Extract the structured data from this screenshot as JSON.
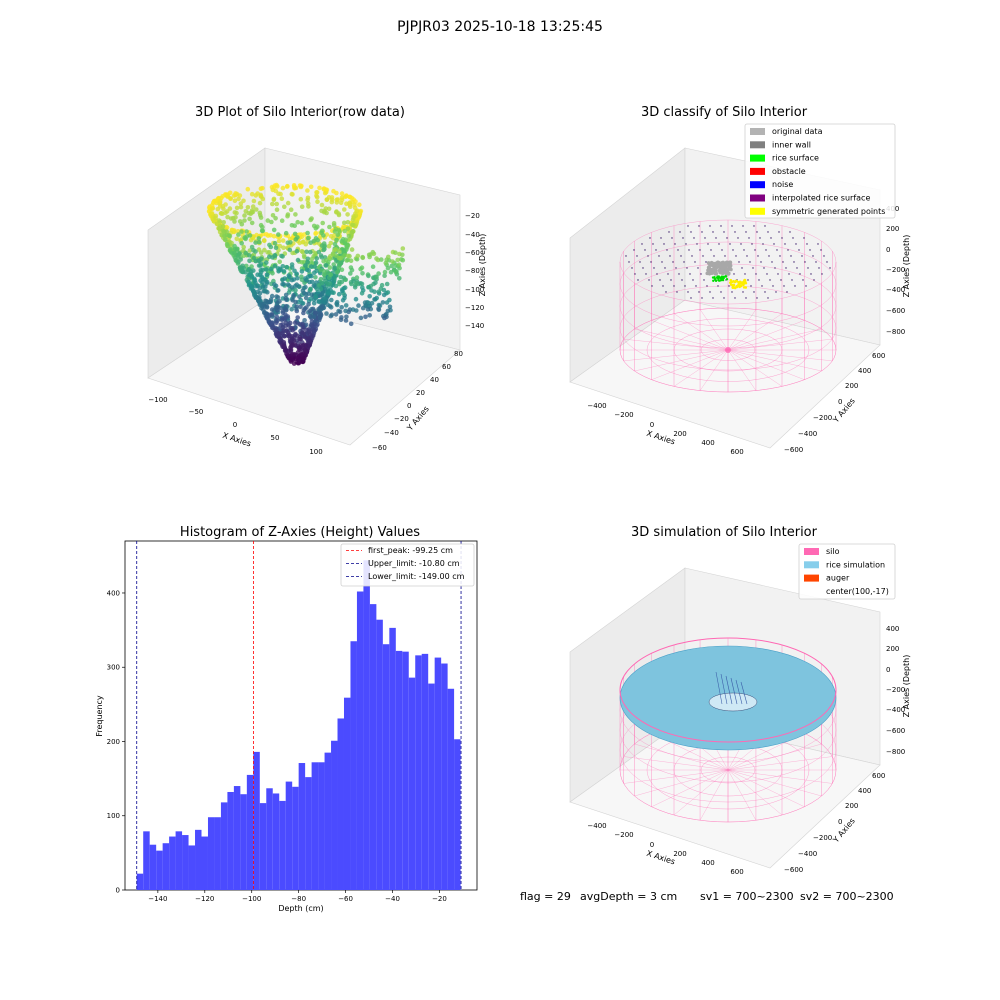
{
  "figure": {
    "suptitle": "PJPJR03 2025-10-18 13:25:45",
    "stats": {
      "flag": "flag = 29",
      "avg": "avgDepth = 3 cm",
      "sv1": "sv1 = 700~2300",
      "sv2": "sv2 = 700~2300"
    }
  },
  "chart_data": [
    {
      "type": "scatter",
      "title": "3D Plot of Silo Interior(row data)",
      "xlabel": "X Axies",
      "ylabel": "Y Axies",
      "zlabel": "Z Axies (Depth)",
      "xticks": [
        "−100",
        "−50",
        "0",
        "50",
        "100"
      ],
      "yticks": [
        "−60",
        "−40",
        "−20",
        "0",
        "20",
        "40",
        "60",
        "80"
      ],
      "zticks": [
        "−20",
        "−40",
        "−60",
        "−80",
        "−100",
        "−120",
        "−140"
      ],
      "zlim": [
        -150,
        -15
      ],
      "colormap": "viridis"
    },
    {
      "type": "scatter",
      "title": "3D classify of Silo Interior",
      "xlabel": "X Axies",
      "ylabel": "Y Axies",
      "zlabel": "Z Axies (Depth)",
      "xticks": [
        "−400",
        "−200",
        "0",
        "200",
        "400",
        "600"
      ],
      "yticks": [
        "−600",
        "−400",
        "−200",
        "0",
        "200",
        "400",
        "600"
      ],
      "zticks": [
        "400",
        "200",
        "0",
        "−200",
        "−400",
        "−600",
        "−800"
      ],
      "legend": [
        {
          "label": "original data",
          "color": "#b3b3b3"
        },
        {
          "label": "inner wall",
          "color": "#808080"
        },
        {
          "label": "rice surface",
          "color": "#00ff00"
        },
        {
          "label": "obstacle",
          "color": "#ff0000"
        },
        {
          "label": "noise",
          "color": "#0000ff"
        },
        {
          "label": "interpolated rice surface",
          "color": "#800080"
        },
        {
          "label": "symmetric generated points",
          "color": "#ffff00"
        }
      ],
      "legend_position": "top-right",
      "silo_color": "#ff69b4"
    },
    {
      "type": "bar",
      "title": "Histogram of Z-Axies (Height) Values",
      "xlabel": "Depth (cm)",
      "ylabel": "Frequency",
      "bin_start": -149,
      "bin_width": 2.76,
      "values": [
        22,
        79,
        61,
        53,
        63,
        72,
        79,
        74,
        60,
        81,
        72,
        98,
        98,
        118,
        132,
        140,
        129,
        155,
        186,
        117,
        137,
        130,
        120,
        146,
        139,
        171,
        152,
        172,
        172,
        185,
        201,
        231,
        259,
        335,
        402,
        444,
        385,
        364,
        331,
        353,
        322,
        321,
        286,
        316,
        318,
        278,
        313,
        305,
        271,
        203
      ],
      "xlim": [
        -154,
        -4
      ],
      "ylim": [
        0,
        470
      ],
      "xticks": [
        -140,
        -120,
        -100,
        -80,
        -60,
        -40,
        -20
      ],
      "xtick_labels": [
        "−140",
        "−120",
        "−100",
        "−80",
        "−60",
        "−40",
        "−20"
      ],
      "yticks": [
        0,
        100,
        200,
        300,
        400
      ],
      "yticklabels": [
        "0",
        "100",
        "200",
        "300",
        "400"
      ],
      "bar_color": "#4b4bff",
      "vlines": [
        {
          "label": "first_peak: -99.25 cm",
          "x": -99.25,
          "color": "#ff0000"
        },
        {
          "label": "Upper_limit: -10.80 cm",
          "x": -10.8,
          "color": "#00008b"
        },
        {
          "label": "Lower_limit: -149.00 cm",
          "x": -149.0,
          "color": "#00008b"
        }
      ],
      "legend_position": "top-right"
    },
    {
      "type": "scatter",
      "title": "3D simulation of Silo Interior",
      "xlabel": "X Axies",
      "ylabel": "Y Axies",
      "zlabel": "Z Axies (Depth)",
      "xticks": [
        "−400",
        "−200",
        "0",
        "200",
        "400",
        "600"
      ],
      "yticks": [
        "−600",
        "−400",
        "−200",
        "0",
        "200",
        "400",
        "600"
      ],
      "zticks": [
        "400",
        "200",
        "0",
        "−200",
        "−400",
        "−600",
        "−800"
      ],
      "legend": [
        {
          "label": "silo",
          "color": "#ff69b4"
        },
        {
          "label": "rice simulation",
          "color": "#87ceeb"
        },
        {
          "label": "auger",
          "color": "#ff4500"
        },
        {
          "label": "center(100,-17)",
          "color": ""
        }
      ],
      "legend_position": "top-right"
    }
  ]
}
